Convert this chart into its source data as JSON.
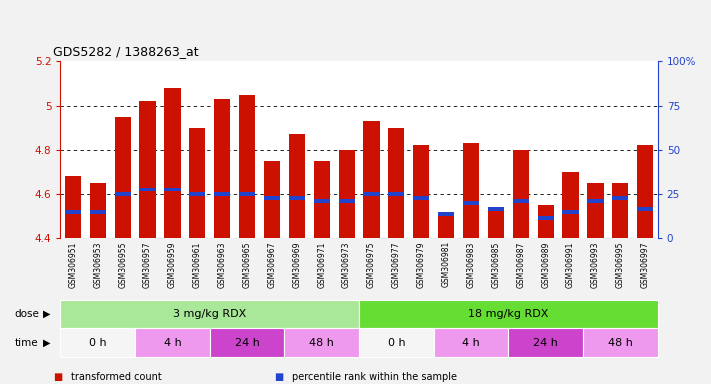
{
  "title": "GDS5282 / 1388263_at",
  "samples": [
    "GSM306951",
    "GSM306953",
    "GSM306955",
    "GSM306957",
    "GSM306959",
    "GSM306961",
    "GSM306963",
    "GSM306965",
    "GSM306967",
    "GSM306969",
    "GSM306971",
    "GSM306973",
    "GSM306975",
    "GSM306977",
    "GSM306979",
    "GSM306981",
    "GSM306983",
    "GSM306985",
    "GSM306987",
    "GSM306989",
    "GSM306991",
    "GSM306993",
    "GSM306995",
    "GSM306997"
  ],
  "bar_values": [
    4.68,
    4.65,
    4.95,
    5.02,
    5.08,
    4.9,
    5.03,
    5.05,
    4.75,
    4.87,
    4.75,
    4.8,
    4.93,
    4.9,
    4.82,
    4.51,
    4.83,
    4.54,
    4.8,
    4.55,
    4.7,
    4.65,
    4.65,
    4.82
  ],
  "blue_values": [
    4.52,
    4.52,
    4.6,
    4.62,
    4.62,
    4.6,
    4.6,
    4.6,
    4.58,
    4.58,
    4.57,
    4.57,
    4.6,
    4.6,
    4.58,
    4.51,
    4.56,
    4.53,
    4.57,
    4.49,
    4.52,
    4.57,
    4.58,
    4.53
  ],
  "ymin": 4.4,
  "ymax": 5.2,
  "yticks": [
    4.4,
    4.6,
    4.8,
    5.0,
    5.2
  ],
  "ytick_labels": [
    "4.4",
    "4.6",
    "4.8",
    "5",
    "5.2"
  ],
  "right_yticks": [
    0,
    25,
    50,
    75,
    100
  ],
  "right_ytick_labels": [
    "0",
    "25",
    "50",
    "75",
    "100%"
  ],
  "bar_color": "#cc1100",
  "blue_color": "#2244cc",
  "dose_segments": [
    {
      "text": "3 mg/kg RDX",
      "start": 0,
      "end": 12,
      "color": "#aae899"
    },
    {
      "text": "18 mg/kg RDX",
      "start": 12,
      "end": 24,
      "color": "#66dd33"
    }
  ],
  "time_segments": [
    {
      "text": "0 h",
      "start": 0,
      "end": 3,
      "color": "#f5f5f5"
    },
    {
      "text": "4 h",
      "start": 3,
      "end": 6,
      "color": "#ee99ee"
    },
    {
      "text": "24 h",
      "start": 6,
      "end": 9,
      "color": "#cc44cc"
    },
    {
      "text": "48 h",
      "start": 9,
      "end": 12,
      "color": "#ee99ee"
    },
    {
      "text": "0 h",
      "start": 12,
      "end": 15,
      "color": "#f5f5f5"
    },
    {
      "text": "4 h",
      "start": 15,
      "end": 18,
      "color": "#ee99ee"
    },
    {
      "text": "24 h",
      "start": 18,
      "end": 21,
      "color": "#cc44cc"
    },
    {
      "text": "48 h",
      "start": 21,
      "end": 24,
      "color": "#ee99ee"
    }
  ],
  "legend": [
    {
      "color": "#cc1100",
      "label": "transformed count"
    },
    {
      "color": "#2244cc",
      "label": "percentile rank within the sample"
    }
  ]
}
